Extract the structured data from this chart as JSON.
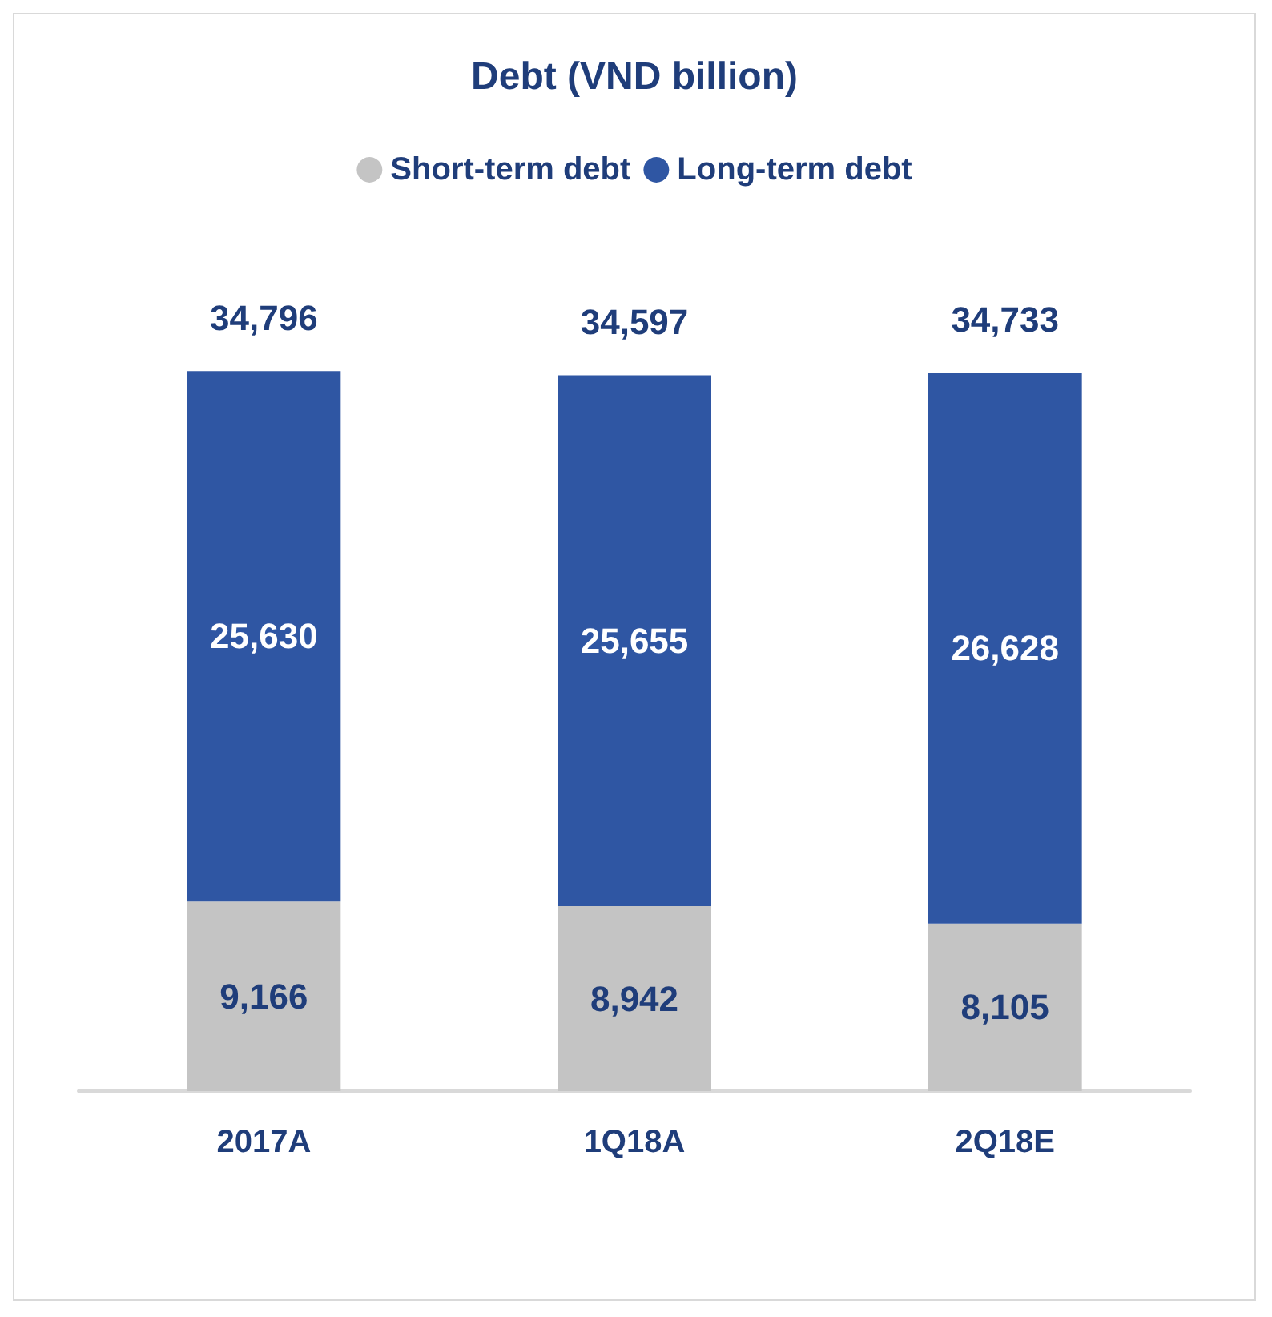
{
  "chart_data": {
    "type": "bar",
    "title": "Debt (VND billion)",
    "categories": [
      "2017A",
      "1Q18A",
      "2Q18E"
    ],
    "stacked": true,
    "series": [
      {
        "name": "Short-term debt",
        "color": "#c4c4c4",
        "values": [
          9166,
          8942,
          8105
        ],
        "value_labels": [
          "9,166",
          "8,942",
          "8,105"
        ]
      },
      {
        "name": "Long-term debt",
        "color": "#2f56a3",
        "values": [
          25630,
          25655,
          26628
        ],
        "value_labels": [
          "25,630",
          "25,655",
          "26,628"
        ]
      }
    ],
    "totals": [
      "34,796",
      "34,597",
      "34,733"
    ],
    "legend": "top"
  }
}
